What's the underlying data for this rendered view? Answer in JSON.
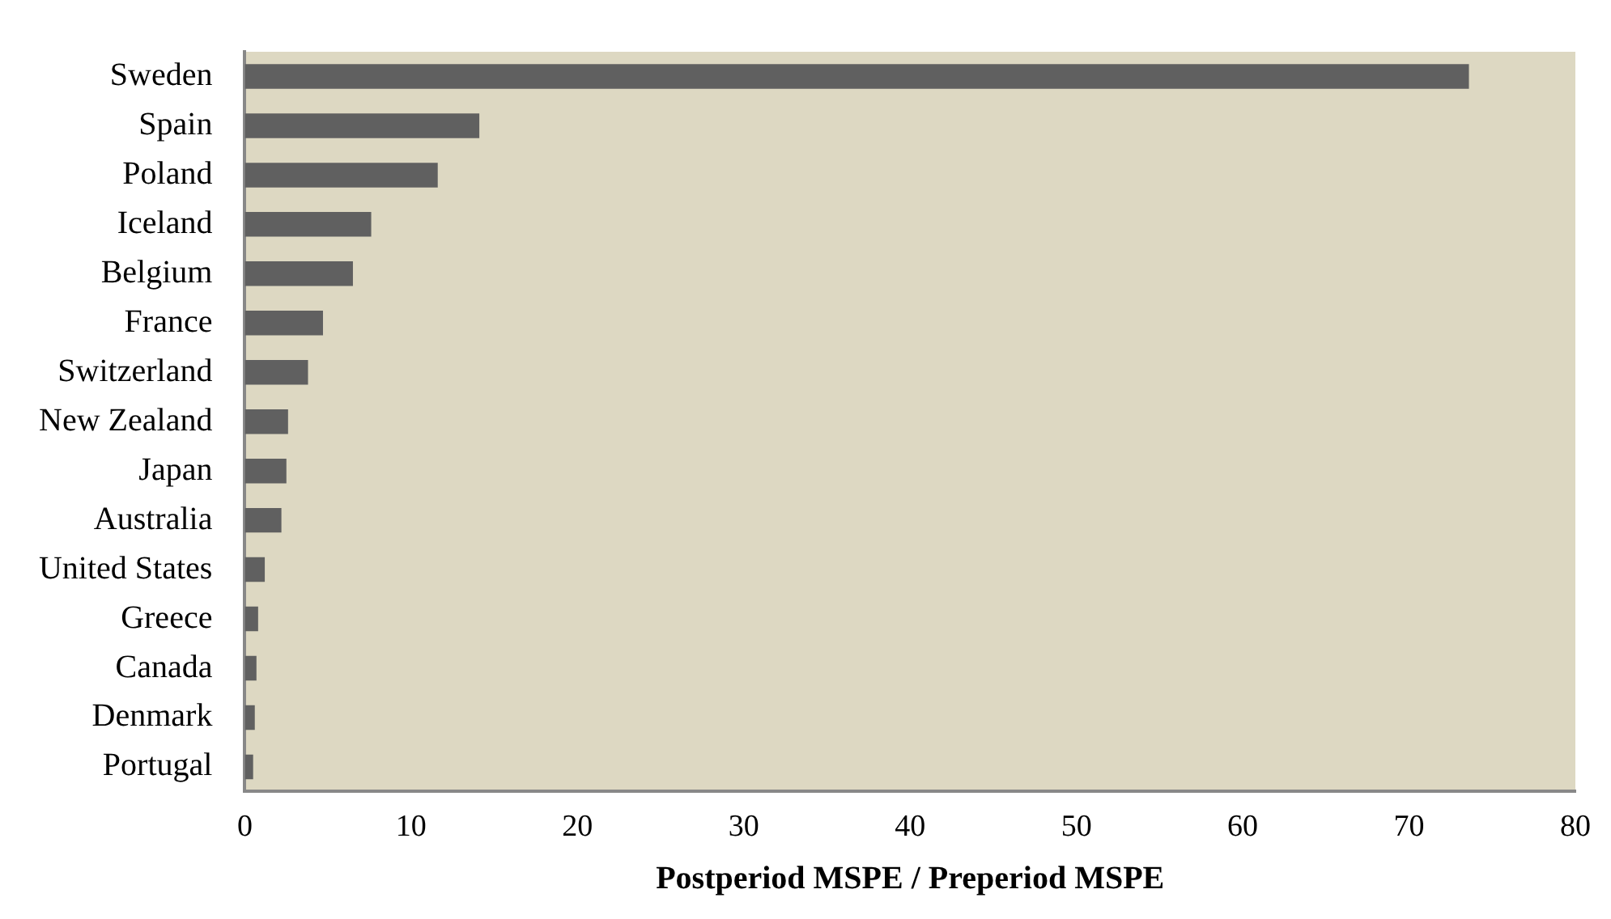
{
  "chart_data": {
    "type": "bar",
    "orientation": "horizontal",
    "xlabel": "Postperiod MSPE / Preperiod MSPE",
    "categories": [
      "Sweden",
      "Spain",
      "Poland",
      "Iceland",
      "Belgium",
      "France",
      "Switzerland",
      "New Zealand",
      "Japan",
      "Australia",
      "United States",
      "Greece",
      "Canada",
      "Denmark",
      "Portugal"
    ],
    "values": [
      73.6,
      14.1,
      11.6,
      7.6,
      6.5,
      4.7,
      3.8,
      2.6,
      2.5,
      2.2,
      1.2,
      0.8,
      0.7,
      0.6,
      0.5
    ],
    "color": "#606060",
    "xlim": [
      0,
      80
    ],
    "xticks": [
      0,
      10,
      20,
      30,
      40,
      50,
      60,
      70,
      80
    ],
    "grid": false,
    "legend": false
  }
}
